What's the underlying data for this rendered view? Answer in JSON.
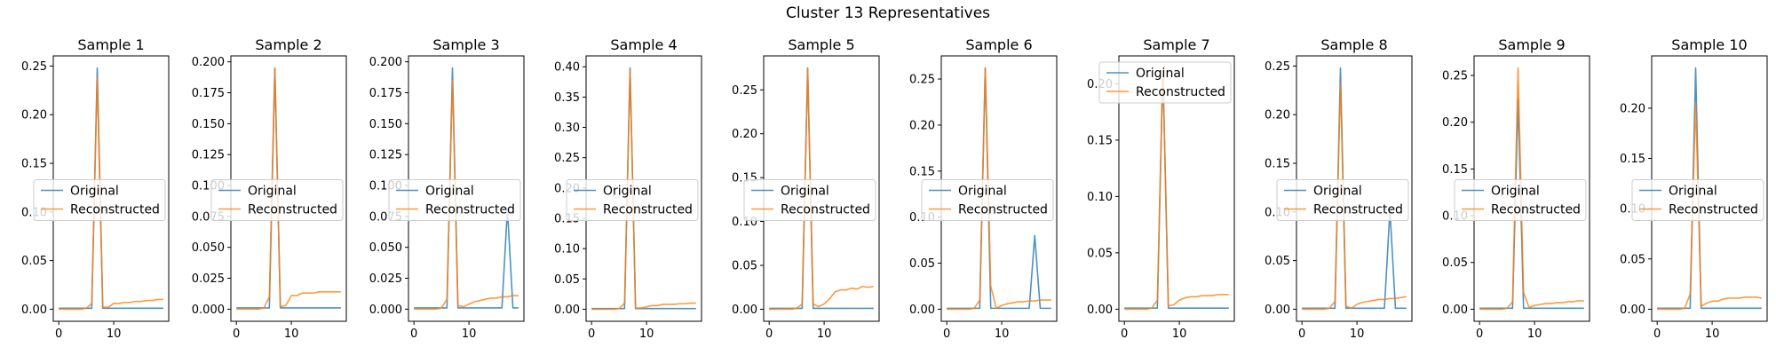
{
  "figure": {
    "suptitle": "Cluster 13 Representatives"
  },
  "colors": {
    "original": "#1f77b4",
    "reconstructed": "#ff7f0e"
  },
  "chart_data": [
    {
      "type": "line",
      "title": "Sample 1",
      "xlabel": "",
      "ylabel": "",
      "xlim": [
        -1,
        20
      ],
      "ylim": [
        -0.0124,
        0.2604
      ],
      "xticks": [
        0,
        10
      ],
      "yticks": [
        0.0,
        0.05,
        0.1,
        0.15,
        0.2,
        0.25
      ],
      "ytick_labels": [
        "0.00",
        "0.05",
        "0.10",
        "0.15",
        "0.20",
        "0.25"
      ],
      "legend": "center-left",
      "x": [
        0,
        1,
        2,
        3,
        4,
        5,
        6,
        7,
        8,
        9,
        10,
        11,
        12,
        13,
        14,
        15,
        16,
        17,
        18,
        19
      ],
      "series": [
        {
          "name": "Original",
          "values": [
            0.001,
            0.001,
            0.001,
            0.001,
            0.001,
            0.001,
            0.001,
            0.248,
            0.001,
            0.001,
            0.001,
            0.001,
            0.001,
            0.001,
            0.001,
            0.001,
            0.001,
            0.001,
            0.001,
            0.001
          ]
        },
        {
          "name": "Reconstructed",
          "values": [
            0.0,
            0.0,
            0.0,
            0.0,
            0.0,
            0.001,
            0.006,
            0.238,
            0.002,
            0.002,
            0.006,
            0.006,
            0.007,
            0.007,
            0.008,
            0.008,
            0.009,
            0.009,
            0.01,
            0.01
          ]
        }
      ]
    },
    {
      "type": "line",
      "title": "Sample 2",
      "xlabel": "",
      "ylabel": "",
      "xlim": [
        -1,
        20
      ],
      "ylim": [
        -0.0098,
        0.2048
      ],
      "xticks": [
        0,
        10
      ],
      "yticks": [
        0.0,
        0.025,
        0.05,
        0.075,
        0.1,
        0.125,
        0.15,
        0.175,
        0.2
      ],
      "ytick_labels": [
        "0.000",
        "0.025",
        "0.050",
        "0.075",
        "0.100",
        "0.125",
        "0.150",
        "0.175",
        "0.200"
      ],
      "legend": "center-left",
      "x": [
        0,
        1,
        2,
        3,
        4,
        5,
        6,
        7,
        8,
        9,
        10,
        11,
        12,
        13,
        14,
        15,
        16,
        17,
        18,
        19
      ],
      "series": [
        {
          "name": "Original",
          "values": [
            0.001,
            0.001,
            0.001,
            0.001,
            0.001,
            0.001,
            0.001,
            0.195,
            0.001,
            0.001,
            0.001,
            0.001,
            0.001,
            0.001,
            0.001,
            0.001,
            0.001,
            0.001,
            0.001,
            0.001
          ]
        },
        {
          "name": "Reconstructed",
          "values": [
            0.0,
            0.0,
            0.0,
            0.0,
            0.0,
            0.001,
            0.01,
            0.195,
            0.002,
            0.003,
            0.011,
            0.011,
            0.013,
            0.013,
            0.013,
            0.014,
            0.014,
            0.014,
            0.014,
            0.014
          ]
        }
      ]
    },
    {
      "type": "line",
      "title": "Sample 3",
      "xlabel": "",
      "ylabel": "",
      "xlim": [
        -1,
        20
      ],
      "ylim": [
        -0.0098,
        0.2048
      ],
      "xticks": [
        0,
        10
      ],
      "yticks": [
        0.0,
        0.025,
        0.05,
        0.075,
        0.1,
        0.125,
        0.15,
        0.175,
        0.2
      ],
      "ytick_labels": [
        "0.000",
        "0.025",
        "0.050",
        "0.075",
        "0.100",
        "0.125",
        "0.150",
        "0.175",
        "0.200"
      ],
      "legend": "center-left",
      "x": [
        0,
        1,
        2,
        3,
        4,
        5,
        6,
        7,
        8,
        9,
        10,
        11,
        12,
        13,
        14,
        15,
        16,
        17,
        18,
        19
      ],
      "series": [
        {
          "name": "Original",
          "values": [
            0.001,
            0.001,
            0.001,
            0.001,
            0.001,
            0.001,
            0.001,
            0.195,
            0.001,
            0.001,
            0.001,
            0.001,
            0.001,
            0.001,
            0.001,
            0.001,
            0.001,
            0.081,
            0.001,
            0.001
          ]
        },
        {
          "name": "Reconstructed",
          "values": [
            0.0,
            0.0,
            0.0,
            0.0,
            0.0,
            0.001,
            0.008,
            0.185,
            0.003,
            0.002,
            0.004,
            0.006,
            0.007,
            0.008,
            0.009,
            0.009,
            0.01,
            0.01,
            0.011,
            0.011
          ]
        }
      ]
    },
    {
      "type": "line",
      "title": "Sample 4",
      "xlabel": "",
      "ylabel": "",
      "xlim": [
        -1,
        20
      ],
      "ylim": [
        -0.0199,
        0.4179
      ],
      "xticks": [
        0,
        10
      ],
      "yticks": [
        0.0,
        0.05,
        0.1,
        0.15,
        0.2,
        0.25,
        0.3,
        0.35,
        0.4
      ],
      "ytick_labels": [
        "0.00",
        "0.05",
        "0.10",
        "0.15",
        "0.20",
        "0.25",
        "0.30",
        "0.35",
        "0.40"
      ],
      "legend": "center-left",
      "x": [
        0,
        1,
        2,
        3,
        4,
        5,
        6,
        7,
        8,
        9,
        10,
        11,
        12,
        13,
        14,
        15,
        16,
        17,
        18,
        19
      ],
      "series": [
        {
          "name": "Original",
          "values": [
            0.001,
            0.001,
            0.001,
            0.001,
            0.001,
            0.001,
            0.001,
            0.398,
            0.001,
            0.001,
            0.001,
            0.001,
            0.001,
            0.001,
            0.001,
            0.001,
            0.001,
            0.001,
            0.001,
            0.001
          ]
        },
        {
          "name": "Reconstructed",
          "values": [
            0.0,
            0.0,
            0.0,
            0.0,
            0.0,
            0.001,
            0.01,
            0.395,
            0.002,
            0.002,
            0.004,
            0.006,
            0.006,
            0.008,
            0.008,
            0.008,
            0.009,
            0.009,
            0.01,
            0.01
          ]
        }
      ]
    },
    {
      "type": "line",
      "title": "Sample 5",
      "xlabel": "",
      "ylabel": "",
      "xlim": [
        -1,
        20
      ],
      "ylim": [
        -0.0137,
        0.2887
      ],
      "xticks": [
        0,
        10
      ],
      "yticks": [
        0.0,
        0.05,
        0.1,
        0.15,
        0.2,
        0.25
      ],
      "ytick_labels": [
        "0.00",
        "0.05",
        "0.10",
        "0.15",
        "0.20",
        "0.25"
      ],
      "legend": "center-left",
      "x": [
        0,
        1,
        2,
        3,
        4,
        5,
        6,
        7,
        8,
        9,
        10,
        11,
        12,
        13,
        14,
        15,
        16,
        17,
        18,
        19
      ],
      "series": [
        {
          "name": "Original",
          "values": [
            0.001,
            0.001,
            0.001,
            0.001,
            0.001,
            0.001,
            0.001,
            0.275,
            0.001,
            0.001,
            0.001,
            0.001,
            0.001,
            0.001,
            0.001,
            0.001,
            0.001,
            0.001,
            0.001,
            0.001
          ]
        },
        {
          "name": "Reconstructed",
          "values": [
            0.0,
            0.0,
            0.0,
            0.0,
            0.0,
            0.001,
            0.006,
            0.275,
            0.006,
            0.003,
            0.006,
            0.012,
            0.02,
            0.022,
            0.022,
            0.024,
            0.023,
            0.026,
            0.025,
            0.026
          ]
        }
      ]
    },
    {
      "type": "line",
      "title": "Sample 6",
      "xlabel": "",
      "ylabel": "",
      "xlim": [
        -1,
        20
      ],
      "ylim": [
        -0.0131,
        0.2751
      ],
      "xticks": [
        0,
        10
      ],
      "yticks": [
        0.0,
        0.05,
        0.1,
        0.15,
        0.2,
        0.25
      ],
      "ytick_labels": [
        "0.00",
        "0.05",
        "0.10",
        "0.15",
        "0.20",
        "0.25"
      ],
      "legend": "center-left",
      "x": [
        0,
        1,
        2,
        3,
        4,
        5,
        6,
        7,
        8,
        9,
        10,
        11,
        12,
        13,
        14,
        15,
        16,
        17,
        18,
        19
      ],
      "series": [
        {
          "name": "Original",
          "values": [
            0.001,
            0.001,
            0.001,
            0.001,
            0.001,
            0.001,
            0.001,
            0.262,
            0.001,
            0.001,
            0.001,
            0.001,
            0.001,
            0.001,
            0.001,
            0.001,
            0.08,
            0.001,
            0.001,
            0.001
          ]
        },
        {
          "name": "Reconstructed",
          "values": [
            0.0,
            0.0,
            0.0,
            0.0,
            0.0,
            0.001,
            0.01,
            0.262,
            0.025,
            0.001,
            0.004,
            0.006,
            0.007,
            0.008,
            0.008,
            0.009,
            0.009,
            0.01,
            0.01,
            0.01
          ]
        }
      ]
    },
    {
      "type": "line",
      "title": "Sample 7",
      "xlabel": "",
      "ylabel": "",
      "xlim": [
        -1,
        20
      ],
      "ylim": [
        -0.0107,
        0.2247
      ],
      "xticks": [
        0,
        10
      ],
      "yticks": [
        0.0,
        0.05,
        0.1,
        0.15,
        0.2
      ],
      "ytick_labels": [
        "0.00",
        "0.05",
        "0.10",
        "0.15",
        "0.20"
      ],
      "legend": "top-left",
      "x": [
        0,
        1,
        2,
        3,
        4,
        5,
        6,
        7,
        8,
        9,
        10,
        11,
        12,
        13,
        14,
        15,
        16,
        17,
        18,
        19
      ],
      "series": [
        {
          "name": "Original",
          "values": [
            0.001,
            0.001,
            0.001,
            0.001,
            0.001,
            0.001,
            0.001,
            0.214,
            0.001,
            0.001,
            0.001,
            0.001,
            0.001,
            0.001,
            0.001,
            0.001,
            0.001,
            0.001,
            0.001,
            0.001
          ]
        },
        {
          "name": "Reconstructed",
          "values": [
            0.0,
            0.0,
            0.0,
            0.0,
            0.0,
            0.001,
            0.008,
            0.214,
            0.003,
            0.004,
            0.008,
            0.01,
            0.011,
            0.011,
            0.012,
            0.012,
            0.012,
            0.013,
            0.013,
            0.013
          ]
        }
      ]
    },
    {
      "type": "line",
      "title": "Sample 8",
      "xlabel": "",
      "ylabel": "",
      "xlim": [
        -1,
        20
      ],
      "ylim": [
        -0.0124,
        0.2604
      ],
      "xticks": [
        0,
        10
      ],
      "yticks": [
        0.0,
        0.05,
        0.1,
        0.15,
        0.2,
        0.25
      ],
      "ytick_labels": [
        "0.00",
        "0.05",
        "0.10",
        "0.15",
        "0.20",
        "0.25"
      ],
      "legend": "center-left",
      "x": [
        0,
        1,
        2,
        3,
        4,
        5,
        6,
        7,
        8,
        9,
        10,
        11,
        12,
        13,
        14,
        15,
        16,
        17,
        18,
        19
      ],
      "series": [
        {
          "name": "Original",
          "values": [
            0.001,
            0.001,
            0.001,
            0.001,
            0.001,
            0.001,
            0.001,
            0.248,
            0.001,
            0.001,
            0.001,
            0.001,
            0.001,
            0.001,
            0.001,
            0.001,
            0.102,
            0.001,
            0.001,
            0.001
          ]
        },
        {
          "name": "Reconstructed",
          "values": [
            0.0,
            0.0,
            0.0,
            0.0,
            0.0,
            0.001,
            0.008,
            0.232,
            0.003,
            0.001,
            0.005,
            0.007,
            0.008,
            0.009,
            0.01,
            0.01,
            0.011,
            0.011,
            0.012,
            0.013
          ]
        }
      ]
    },
    {
      "type": "line",
      "title": "Sample 9",
      "xlabel": "",
      "ylabel": "",
      "xlim": [
        -1,
        20
      ],
      "ylim": [
        -0.0129,
        0.2709
      ],
      "xticks": [
        0,
        10
      ],
      "yticks": [
        0.0,
        0.05,
        0.1,
        0.15,
        0.2,
        0.25
      ],
      "ytick_labels": [
        "0.00",
        "0.05",
        "0.10",
        "0.15",
        "0.20",
        "0.25"
      ],
      "legend": "center-left",
      "x": [
        0,
        1,
        2,
        3,
        4,
        5,
        6,
        7,
        8,
        9,
        10,
        11,
        12,
        13,
        14,
        15,
        16,
        17,
        18,
        19
      ],
      "series": [
        {
          "name": "Original",
          "values": [
            0.001,
            0.001,
            0.001,
            0.001,
            0.001,
            0.001,
            0.001,
            0.225,
            0.001,
            0.001,
            0.001,
            0.001,
            0.001,
            0.001,
            0.001,
            0.001,
            0.001,
            0.001,
            0.001,
            0.001
          ]
        },
        {
          "name": "Reconstructed",
          "values": [
            0.0,
            0.0,
            0.0,
            0.0,
            0.0,
            0.001,
            0.008,
            0.258,
            0.018,
            0.002,
            0.004,
            0.005,
            0.006,
            0.006,
            0.007,
            0.007,
            0.008,
            0.008,
            0.009,
            0.009
          ]
        }
      ]
    },
    {
      "type": "line",
      "title": "Sample 10",
      "xlabel": "",
      "ylabel": "",
      "xlim": [
        -1,
        20
      ],
      "ylim": [
        -0.012,
        0.252
      ],
      "xticks": [
        0,
        10
      ],
      "yticks": [
        0.0,
        0.05,
        0.1,
        0.15,
        0.2
      ],
      "ytick_labels": [
        "0.00",
        "0.05",
        "0.10",
        "0.15",
        "0.20"
      ],
      "legend": "center-left",
      "x": [
        0,
        1,
        2,
        3,
        4,
        5,
        6,
        7,
        8,
        9,
        10,
        11,
        12,
        13,
        14,
        15,
        16,
        17,
        18,
        19
      ],
      "series": [
        {
          "name": "Original",
          "values": [
            0.001,
            0.001,
            0.001,
            0.001,
            0.001,
            0.001,
            0.001,
            0.24,
            0.001,
            0.001,
            0.001,
            0.001,
            0.001,
            0.001,
            0.001,
            0.001,
            0.001,
            0.001,
            0.001,
            0.001
          ]
        },
        {
          "name": "Reconstructed",
          "values": [
            0.0,
            0.0,
            0.0,
            0.0,
            0.0,
            0.001,
            0.015,
            0.205,
            0.003,
            0.006,
            0.008,
            0.008,
            0.01,
            0.011,
            0.011,
            0.011,
            0.012,
            0.012,
            0.012,
            0.011
          ]
        }
      ]
    }
  ]
}
